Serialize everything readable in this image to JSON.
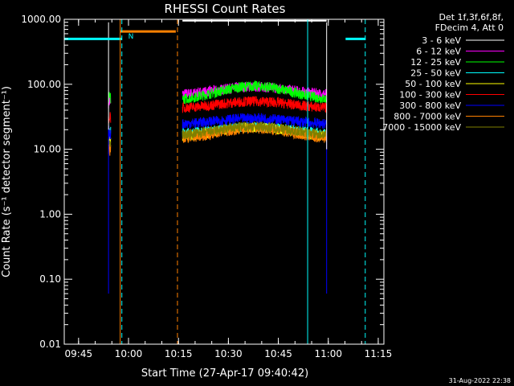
{
  "chart_data": {
    "type": "line",
    "title": "RHESSI Count Rates",
    "xlabel": "Start Time (27-Apr-17 09:40:42)",
    "ylabel": "Count Rate (s⁻¹ detector segment⁻¹)",
    "yscale": "log",
    "ylim": [
      0.01,
      1000
    ],
    "xlim_minutes": [
      0,
      96
    ],
    "x_unit": "minutes after 09:40:42",
    "yticks": [
      {
        "value": 1000,
        "label": "1000.00"
      },
      {
        "value": 100,
        "label": "100.00"
      },
      {
        "value": 10,
        "label": "10.00"
      },
      {
        "value": 1,
        "label": "1.00"
      },
      {
        "value": 0.1,
        "label": "0.10"
      },
      {
        "value": 0.01,
        "label": "0.01"
      }
    ],
    "xticks": [
      {
        "minute": 4.3,
        "label": "09:45"
      },
      {
        "minute": 19.3,
        "label": "10:00"
      },
      {
        "minute": 34.3,
        "label": "10:15"
      },
      {
        "minute": 49.3,
        "label": "10:30"
      },
      {
        "minute": 64.3,
        "label": "10:45"
      },
      {
        "minute": 79.3,
        "label": "11:00"
      },
      {
        "minute": 94.3,
        "label": "11:15"
      }
    ],
    "legend": {
      "header": [
        "Det 1f,3f,6f,8f,",
        "FDecim 4, Att 0"
      ],
      "placement": "right"
    },
    "series": [
      {
        "name": "3 - 6 keV",
        "color": "#000000",
        "level_early": 900,
        "level_main": 950,
        "hump": 1.0
      },
      {
        "name": "6 - 12 keV",
        "color": "#ff00ff",
        "level_early": 55,
        "level_main": 68,
        "hump": 1.35
      },
      {
        "name": "12 - 25 keV",
        "color": "#00ff00",
        "level_early": 60,
        "level_main": 55,
        "hump": 1.7
      },
      {
        "name": "25 - 50 keV",
        "color": "#00ffff",
        "level_early": 18,
        "level_main": 17,
        "hump": 1.3
      },
      {
        "name": "50 - 100 keV",
        "color": "#ffff00",
        "level_early": 13,
        "level_main": 15,
        "hump": 1.45
      },
      {
        "name": "100 - 300 keV",
        "color": "#ff0000",
        "level_early": 32,
        "level_main": 42,
        "hump": 1.3
      },
      {
        "name": "300 - 800 keV",
        "color": "#0000ff",
        "level_early": 18,
        "level_main": 24,
        "hump": 1.25
      },
      {
        "name": "800 - 7000 keV",
        "color": "#ff8000",
        "level_early": 10,
        "level_main": 14,
        "hump": 1.5
      },
      {
        "name": "7000 - 15000 keV",
        "color": "#808000",
        "level_early": 12,
        "level_main": 16,
        "hump": 1.4
      }
    ],
    "data_segments_minutes": [
      [
        13.3,
        14.0
      ],
      [
        35.5,
        78.8
      ]
    ],
    "flag_bars": [
      {
        "color": "#00ffff",
        "label": "",
        "x": [
          0,
          17.3
        ],
        "y": 500
      },
      {
        "color": "#ff8000",
        "label": "N",
        "x": [
          16.8,
          33.5
        ],
        "y": 650
      },
      {
        "color": "#000000",
        "label": "",
        "x": [
          35.5,
          78.8
        ],
        "y": 950
      },
      {
        "color": "#00ffff",
        "label": "",
        "x": [
          84.5,
          90.5
        ],
        "y": 500
      }
    ],
    "markers": [
      {
        "color": "#00ffff",
        "style": "solid",
        "minute": 73.1
      },
      {
        "color": "#00ffff",
        "style": "dashed",
        "minute": 17.3
      },
      {
        "color": "#00ffff",
        "style": "dashed",
        "minute": 90.4
      },
      {
        "color": "#ff8000",
        "style": "solid",
        "minute": 16.8
      },
      {
        "color": "#ff8000",
        "style": "dashed",
        "minute": 34.0
      }
    ]
  },
  "footer": {
    "timestamp": "31-Aug-2022 22:38"
  }
}
